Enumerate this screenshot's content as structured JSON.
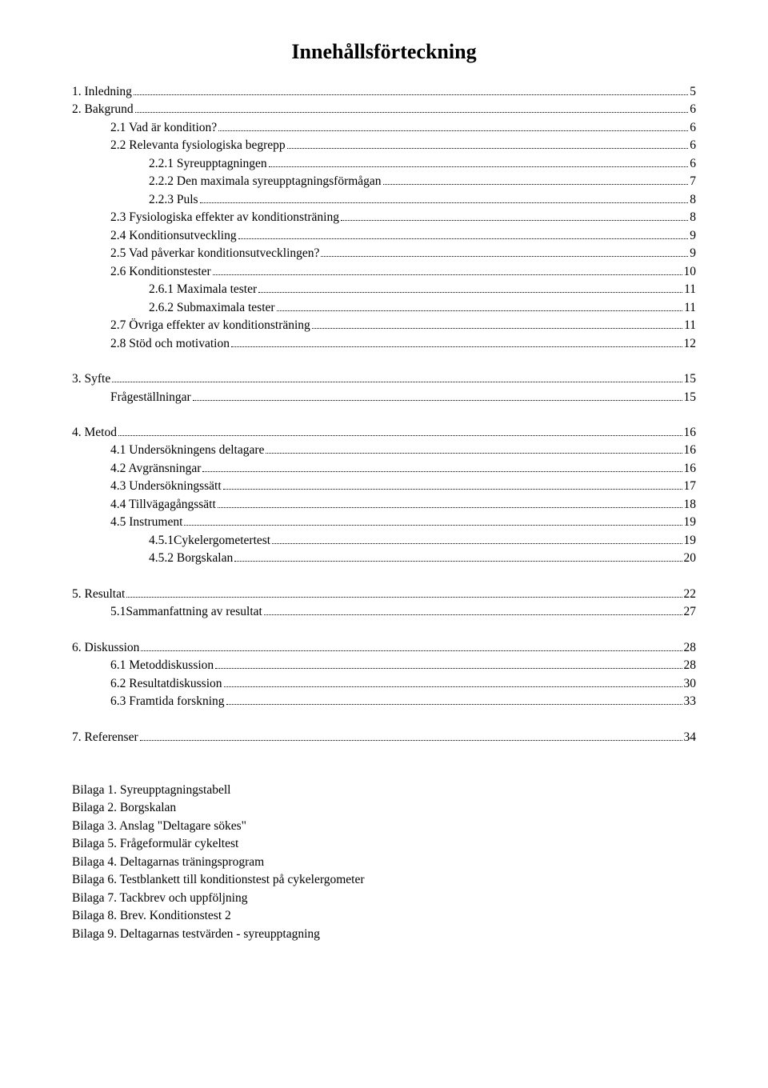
{
  "title": "Innehållsförteckning",
  "toc": [
    {
      "indent": 0,
      "label": "1. Inledning",
      "page": "5"
    },
    {
      "indent": 0,
      "label": "2. Bakgrund",
      "page": "6"
    },
    {
      "indent": 1,
      "label": "2.1 Vad är kondition?",
      "page": "6"
    },
    {
      "indent": 1,
      "label": "2.2 Relevanta fysiologiska begrepp",
      "page": "6"
    },
    {
      "indent": 2,
      "label": "2.2.1 Syreupptagningen",
      "page": "6"
    },
    {
      "indent": 2,
      "label": "2.2.2 Den maximala syreupptagningsförmågan",
      "page": "7"
    },
    {
      "indent": 2,
      "label": "2.2.3 Puls",
      "page": "8"
    },
    {
      "indent": 1,
      "label": "2.3 Fysiologiska effekter av konditionsträning",
      "page": "8"
    },
    {
      "indent": 1,
      "label": "2.4 Konditionsutveckling",
      "page": "9"
    },
    {
      "indent": 1,
      "label": "2.5 Vad påverkar konditionsutvecklingen?",
      "page": "9"
    },
    {
      "indent": 1,
      "label": "2.6 Konditionstester",
      "page": "10"
    },
    {
      "indent": 2,
      "label": "2.6.1 Maximala tester",
      "page": "11"
    },
    {
      "indent": 2,
      "label": "2.6.2 Submaximala tester",
      "page": "11"
    },
    {
      "indent": 1,
      "label": "2.7 Övriga effekter av konditionsträning",
      "page": "11"
    },
    {
      "indent": 1,
      "label": "2.8 Stöd och motivation",
      "page": "12"
    }
  ],
  "toc3": [
    {
      "indent": 0,
      "label": "3. Syfte",
      "page": "15"
    },
    {
      "indent": 1,
      "label": "Frågeställningar",
      "page": "15"
    }
  ],
  "toc4": [
    {
      "indent": 0,
      "label": "4. Metod",
      "page": "16"
    },
    {
      "indent": 1,
      "label": "4.1 Undersökningens deltagare",
      "page": "16"
    },
    {
      "indent": 1,
      "label": "4.2 Avgränsningar",
      "page": "16"
    },
    {
      "indent": 1,
      "label": "4.3 Undersökningssätt",
      "page": "17"
    },
    {
      "indent": 1,
      "label": "4.4 Tillvägagångssätt",
      "page": "18"
    },
    {
      "indent": 1,
      "label": "4.5  Instrument",
      "page": "19"
    },
    {
      "indent": 2,
      "label": "4.5.1Cykelergometertest",
      "page": "19"
    },
    {
      "indent": 2,
      "label": "4.5.2 Borgskalan ",
      "page": "20"
    }
  ],
  "toc5": [
    {
      "indent": 0,
      "label": "5. Resultat",
      "page": "22"
    },
    {
      "indent": 1,
      "label": "5.1Sammanfattning av resultat",
      "page": "27"
    }
  ],
  "toc6": [
    {
      "indent": 0,
      "label": "6. Diskussion",
      "page": "28"
    },
    {
      "indent": 1,
      "label": "6.1 Metoddiskussion",
      "page": "28"
    },
    {
      "indent": 1,
      "label": "6.2 Resultatdiskussion",
      "page": "30"
    },
    {
      "indent": 1,
      "label": "6.3 Framtida forskning",
      "page": "33"
    }
  ],
  "toc7": [
    {
      "indent": 0,
      "label": "7. Referenser",
      "page": "34"
    }
  ],
  "appendix": [
    "Bilaga 1. Syreupptagningstabell",
    "Bilaga 2. Borgskalan",
    "Bilaga 3. Anslag \"Deltagare sökes\"",
    "Bilaga 5. Frågeformulär cykeltest",
    "Bilaga 4. Deltagarnas träningsprogram",
    "Bilaga 6. Testblankett till konditionstest på cykelergometer",
    "Bilaga 7. Tackbrev och uppföljning",
    "Bilaga 8. Brev. Konditionstest 2",
    "Bilaga 9. Deltagarnas testvärden - syreupptagning"
  ]
}
